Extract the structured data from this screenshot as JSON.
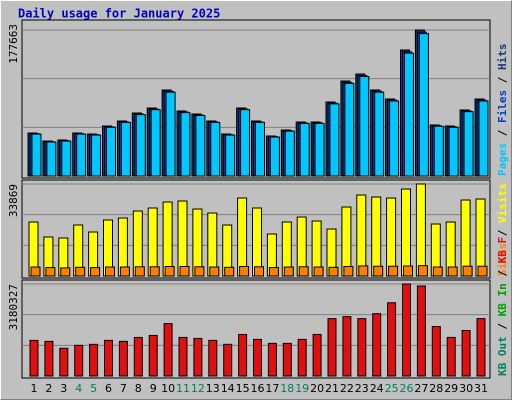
{
  "chart_data": [
    {
      "type": "bar",
      "title": "Daily usage for January 2025",
      "ylim": [
        0,
        177663
      ],
      "series": [
        {
          "name": "Hits",
          "color": "#1a3c74",
          "values": [
            52331,
            42595,
            43812,
            52331,
            51114,
            60850,
            66935,
            76671,
            82756,
            104662,
            79105,
            75454,
            66935,
            51114,
            82756,
            66935,
            48680,
            55982,
            65718,
            65718,
            90058,
            115615,
            124134,
            104662,
            93709,
            153342,
            177663,
            62067,
            60850,
            80322,
            93709
          ]
        },
        {
          "name": "Files",
          "color": "#0040c0",
          "values": [
            51500,
            41900,
            43100,
            51500,
            50300,
            59900,
            65900,
            75500,
            81500,
            103100,
            77900,
            74300,
            65900,
            50300,
            81500,
            65900,
            47900,
            55100,
            64700,
            64700,
            88700,
            113900,
            122300,
            103100,
            92300,
            151100,
            175100,
            61100,
            59900,
            79100,
            92300
          ]
        },
        {
          "name": "Pages",
          "color": "#00c8ff",
          "values": [
            51000,
            41300,
            42500,
            51000,
            49800,
            59300,
            65200,
            74700,
            80700,
            102000,
            77100,
            73600,
            65200,
            49800,
            80700,
            65200,
            47400,
            54600,
            64000,
            64000,
            87800,
            112700,
            121000,
            102000,
            91300,
            149500,
            173200,
            60500,
            59300,
            78300,
            91300
          ]
        }
      ]
    },
    {
      "type": "bar",
      "ylim": [
        0,
        33869
      ],
      "series": [
        {
          "name": "Visits",
          "color": "#ffff00",
          "values": [
            19872,
            14352,
            13984,
            18768,
            16192,
            20608,
            21344,
            23920,
            25024,
            27232,
            27600,
            24656,
            23184,
            18768,
            28704,
            25024,
            15456,
            19872,
            21712,
            20240,
            17296,
            25392,
            29808,
            29072,
            28704,
            32016,
            33869,
            19136,
            19872,
            27968,
            28336
          ]
        },
        {
          "name": "Sites",
          "color": "#ff8000",
          "values": [
            3300,
            3100,
            3000,
            3200,
            3100,
            3300,
            3300,
            3400,
            3400,
            3500,
            3500,
            3400,
            3300,
            3200,
            3500,
            3400,
            3100,
            3300,
            3400,
            3300,
            3200,
            3500,
            3700,
            3600,
            3600,
            3700,
            3800,
            3300,
            3300,
            3600,
            3600
          ]
        }
      ]
    },
    {
      "type": "bar",
      "ylim": [
        0,
        3180327
      ],
      "categories": [
        "1",
        "2",
        "3",
        "4",
        "5",
        "6",
        "7",
        "8",
        "9",
        "10",
        "11",
        "12",
        "13",
        "14",
        "15",
        "16",
        "17",
        "18",
        "19",
        "20",
        "21",
        "22",
        "23",
        "24",
        "25",
        "26",
        "27",
        "28",
        "29",
        "30",
        "31"
      ],
      "category_colors": [
        "#000000",
        "#000000",
        "#000000",
        "#00805c",
        "#00805c",
        "#000000",
        "#000000",
        "#000000",
        "#000000",
        "#000000",
        "#00805c",
        "#00805c",
        "#000000",
        "#000000",
        "#000000",
        "#000000",
        "#000000",
        "#00805c",
        "#00805c",
        "#000000",
        "#000000",
        "#000000",
        "#000000",
        "#000000",
        "#00805c",
        "#00805c",
        "#000000",
        "#000000",
        "#000000",
        "#000000",
        "#000000"
      ],
      "series": [
        {
          "name": "KB F",
          "color": "#e01010",
          "values": [
            1231092,
            1196895,
            957516,
            1060107,
            1094304,
            1231092,
            1196895,
            1333683,
            1402077,
            1812441,
            1333683,
            1299486,
            1231092,
            1094304,
            1436274,
            1265289,
            1128501,
            1128501,
            1265289,
            1436274,
            1983426,
            2051820,
            1983426,
            2154411,
            2530578,
            3180327,
            3111927,
            1709850,
            1333683,
            1573062,
            1983426
          ]
        }
      ],
      "extra_legend": [
        {
          "name": "KB In",
          "color": "#00a000"
        },
        {
          "name": "KB Out",
          "color": "#008060"
        }
      ]
    }
  ]
}
